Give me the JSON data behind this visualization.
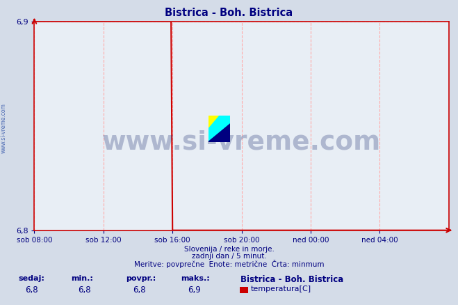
{
  "title": "Bistrica - Boh. Bistrica",
  "title_color": "#000080",
  "bg_color": "#d4dce8",
  "plot_bg_color": "#e8eef5",
  "grid_color": "#ffaaaa",
  "grid_style": "--",
  "axis_color": "#cc0000",
  "xlim_min": 0,
  "xlim_max": 288,
  "ylim_min": 6.8,
  "ylim_max": 6.9,
  "yticks": [
    6.8,
    6.9
  ],
  "xtick_labels": [
    "sob 08:00",
    "sob 12:00",
    "sob 16:00",
    "sob 20:00",
    "ned 00:00",
    "ned 04:00"
  ],
  "xtick_positions": [
    0,
    48,
    96,
    144,
    192,
    240
  ],
  "watermark_text": "www.si-vreme.com",
  "watermark_color": "#1a2a6e",
  "line_color": "#cc0000",
  "line_data_x": [
    0,
    95,
    96,
    288
  ],
  "line_data_y": [
    6.9,
    6.9,
    6.8,
    6.8
  ],
  "footnote1": "Slovenija / reke in morje.",
  "footnote2": "zadnji dan / 5 minut.",
  "footnote3": "Meritve: povprečne  Enote: metrične  Črta: minmum",
  "footnote_color": "#000080",
  "stats_labels": [
    "sedaj:",
    "min.:",
    "povpr.:",
    "maks.:"
  ],
  "stats_values": [
    "6,8",
    "6,8",
    "6,8",
    "6,9"
  ],
  "legend_title": "Bistrica - Boh. Bistrica",
  "legend_item": "temperatura[C]",
  "legend_color": "#cc0000",
  "logo_yellow": "#ffff00",
  "logo_cyan": "#00ffff",
  "logo_blue": "#000080",
  "left_label": "www.si-vreme.com",
  "left_label_color": "#3355aa"
}
